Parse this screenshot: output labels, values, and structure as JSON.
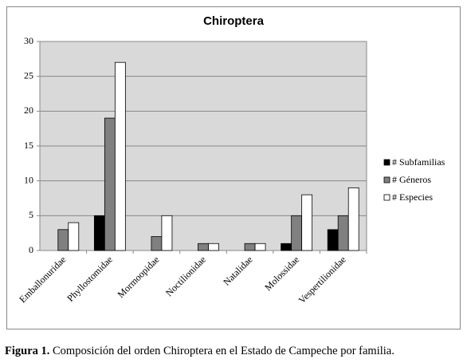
{
  "chart_data": {
    "type": "bar",
    "title": "Chiroptera",
    "categories": [
      "Emballonuridae",
      "Phyllostomidae",
      "Mormoopidae",
      "Noctilionidae",
      "Natalidae",
      "Molossidae",
      "Vespertilionidae"
    ],
    "series": [
      {
        "name": "# Subfamilias",
        "color": "#000000",
        "values": [
          0,
          5,
          0,
          0,
          0,
          1,
          3
        ]
      },
      {
        "name": "# Géneros",
        "color": "#808080",
        "values": [
          3,
          19,
          2,
          1,
          1,
          5,
          5
        ]
      },
      {
        "name": "# Especies",
        "color": "#ffffff",
        "values": [
          4,
          27,
          5,
          1,
          1,
          8,
          9
        ]
      }
    ],
    "ylim": [
      0,
      30
    ],
    "yticks": [
      0,
      5,
      10,
      15,
      20,
      25,
      30
    ],
    "grid": true,
    "legend": "right"
  },
  "caption": {
    "label": "Figura 1.",
    "text": "Composición del orden Chiroptera en el Estado de Campeche por familia."
  }
}
